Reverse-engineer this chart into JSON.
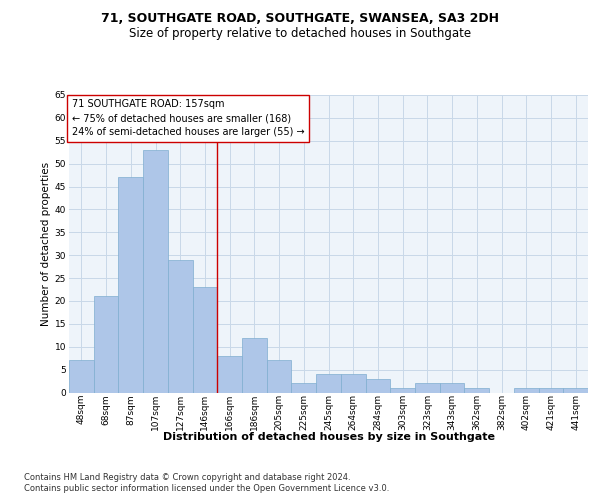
{
  "title": "71, SOUTHGATE ROAD, SOUTHGATE, SWANSEA, SA3 2DH",
  "subtitle": "Size of property relative to detached houses in Southgate",
  "xlabel": "Distribution of detached houses by size in Southgate",
  "ylabel": "Number of detached properties",
  "categories": [
    "48sqm",
    "68sqm",
    "87sqm",
    "107sqm",
    "127sqm",
    "146sqm",
    "166sqm",
    "186sqm",
    "205sqm",
    "225sqm",
    "245sqm",
    "264sqm",
    "284sqm",
    "303sqm",
    "323sqm",
    "343sqm",
    "362sqm",
    "382sqm",
    "402sqm",
    "421sqm",
    "441sqm"
  ],
  "values": [
    7,
    21,
    47,
    53,
    29,
    23,
    8,
    12,
    7,
    2,
    4,
    4,
    3,
    1,
    2,
    2,
    1,
    0,
    1,
    1,
    1
  ],
  "bar_color": "#aec6e8",
  "bar_edge_color": "#7faed0",
  "vline_x": 5.5,
  "vline_color": "#cc0000",
  "annotation_text": "71 SOUTHGATE ROAD: 157sqm\n← 75% of detached houses are smaller (168)\n24% of semi-detached houses are larger (55) →",
  "annotation_box_color": "#ffffff",
  "annotation_box_edge": "#cc0000",
  "ylim": [
    0,
    65
  ],
  "yticks": [
    0,
    5,
    10,
    15,
    20,
    25,
    30,
    35,
    40,
    45,
    50,
    55,
    60,
    65
  ],
  "grid_color": "#c8d8e8",
  "bg_color": "#eef4fa",
  "footer": "Contains HM Land Registry data © Crown copyright and database right 2024.\nContains public sector information licensed under the Open Government Licence v3.0.",
  "title_fontsize": 9,
  "subtitle_fontsize": 8.5,
  "xlabel_fontsize": 8,
  "ylabel_fontsize": 7.5,
  "tick_fontsize": 6.5,
  "annotation_fontsize": 7,
  "footer_fontsize": 6
}
